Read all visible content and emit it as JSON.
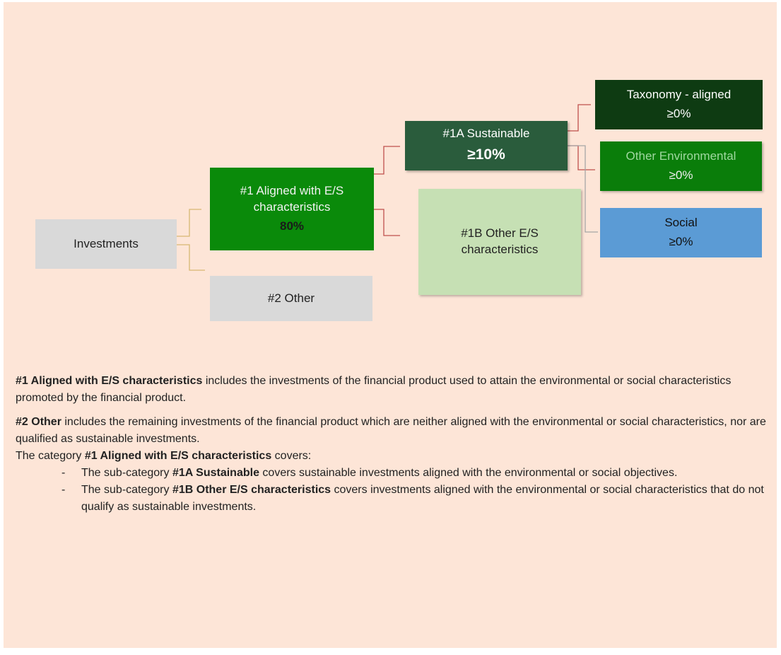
{
  "nodes": [
    {
      "label": "Investments"
    },
    {
      "label": "#1 Aligned with E/S characteristics",
      "value": "80%"
    },
    {
      "label": "#2 Other"
    },
    {
      "label": "#1A Sustainable",
      "value": "≥10%"
    },
    {
      "label": "#1B Other E/S characteristics"
    },
    {
      "label": "Taxonomy - aligned",
      "value": "≥0%"
    },
    {
      "label": "Other Environmental",
      "value": "≥0%"
    },
    {
      "label": "Social",
      "value": "≥0%"
    }
  ],
  "paragraphs": [
    {
      "bold": "#1 Aligned with E/S characteristics",
      "text": " includes the investments of the financial product used to attain the environmental or social characteristics promoted by the financial product."
    },
    {
      "bold": "#2 Other",
      "text": " includes the remaining investments of the financial product which are neither aligned with the environmental or social characteristics, nor are qualified as sustainable investments."
    },
    {
      "prefix": "The category ",
      "bold": "#1 Aligned with E/S characteristics",
      "text": " covers:"
    }
  ],
  "bullets": [
    {
      "prefix": "The sub-category ",
      "bold": "#1A Sustainable",
      "text": " covers sustainable investments aligned with the environmental or social objectives."
    },
    {
      "prefix": "The sub-category ",
      "bold": "#1B Other E/S characteristics",
      "text": " covers investments aligned with the environmental or social characteristics that do not qualify as sustainable investments."
    }
  ]
}
